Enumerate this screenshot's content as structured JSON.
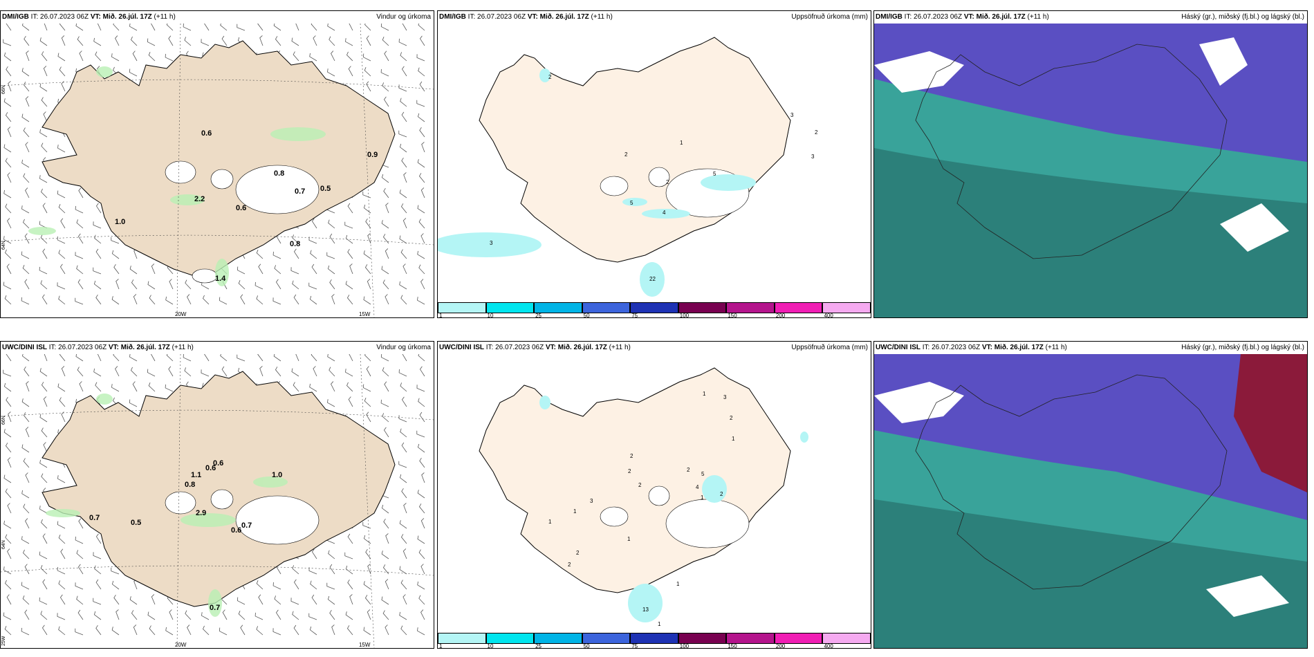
{
  "panels": [
    {
      "model": "DMI/IGB",
      "it": "IT: 26.07.2023 06Z",
      "vt": "VT: Mið. 26.júl. 17Z",
      "lead": "(+11 h)",
      "title": "Vindur og úrkoma"
    },
    {
      "model": "DMI/IGB",
      "it": "IT: 26.07.2023 06Z",
      "vt": "VT: Mið. 26.júl. 17Z",
      "lead": "(+11 h)",
      "title": "Uppsöfnuð úrkoma (mm)"
    },
    {
      "model": "DMI/IGB",
      "it": "IT: 26.07.2023 06Z",
      "vt": "VT: Mið. 26.júl. 17Z",
      "lead": "(+11 h)",
      "title": "Háský (gr.), miðský (fj.bl.) og lágský (bl.)"
    },
    {
      "model": "UWC/DINI ISL",
      "it": "IT: 26.07.2023 06Z",
      "vt": "VT: Mið. 26.júl. 17Z",
      "lead": "(+11 h)",
      "title": "Vindur og úrkoma"
    },
    {
      "model": "UWC/DINI ISL",
      "it": "IT: 26.07.2023 06Z",
      "vt": "VT: Mið. 26.júl. 17Z",
      "lead": "(+11 h)",
      "title": "Uppsöfnuð úrkoma (mm)"
    },
    {
      "model": "UWC/DINI ISL",
      "it": "IT: 26.07.2023 06Z",
      "vt": "VT: Mið. 26.júl. 17Z",
      "lead": "(+11 h)",
      "title": "Háský (gr.), miðský (fj.bl.) og lágský (bl.)"
    }
  ],
  "axis": {
    "lat66": "66N",
    "lat64": "64N",
    "lat63": "63N",
    "lon20": "20W",
    "lon15": "15W",
    "lat25": "25W"
  },
  "wind_values_top": [
    "0.6",
    "0.8",
    "0.9",
    "2.2",
    "0.6",
    "0.7",
    "0.5",
    "1.0",
    "0.8",
    "1.4"
  ],
  "wind_values_bottom": [
    "0.6",
    "1.1",
    "0.6",
    "0.8",
    "1.0",
    "0.7",
    "0.5",
    "2.9",
    "0.7",
    "0.6",
    "0.7"
  ],
  "precip_values_top": [
    "2",
    "3",
    "2",
    "3",
    "1",
    "2",
    "5",
    "2",
    "5",
    "4",
    "3",
    "22"
  ],
  "precip_values_bottom": [
    "1",
    "3",
    "2",
    "1",
    "2",
    "2",
    "2",
    "2",
    "5",
    "4",
    "2",
    "1",
    "3",
    "1",
    "1",
    "2",
    "1",
    "13",
    "1",
    "1",
    "2"
  ],
  "legend": {
    "ticks": [
      "1",
      "10",
      "25",
      "50",
      "75",
      "100",
      "150",
      "200",
      "400"
    ],
    "colors": [
      "#b4f5f5",
      "#00e5ee",
      "#00b4e6",
      "#3c64dc",
      "#1e32b4",
      "#780050",
      "#b4148c",
      "#f01eb4",
      "#f5aaf0"
    ]
  },
  "colors": {
    "land": "#eddcc6",
    "land_precip": "#fdf1e4",
    "green_light": "#b9f0b4",
    "cloud_high": "#5a4fc2",
    "cloud_mid": "#2a7a74",
    "cloud_low": "#2fbf8c"
  }
}
